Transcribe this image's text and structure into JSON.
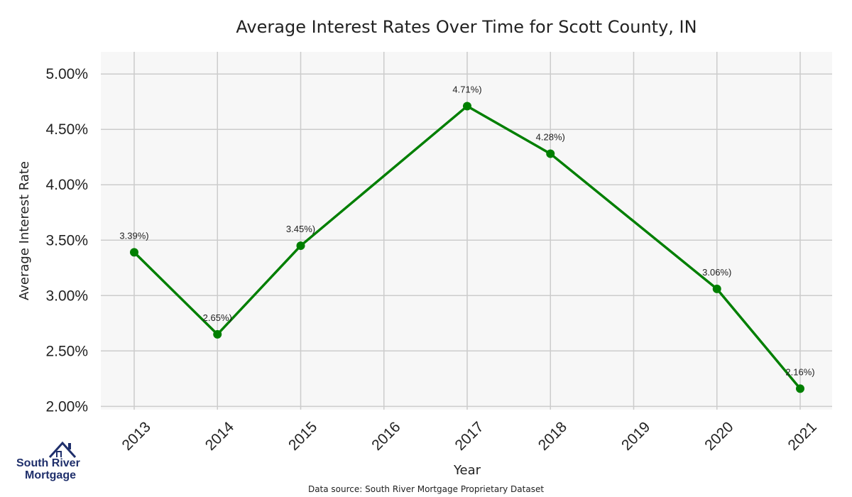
{
  "chart_data": {
    "type": "line",
    "title": "Average Interest Rates Over Time for Scott County, IN",
    "xlabel": "Year",
    "ylabel": "Average Interest Rate",
    "x": [
      "2013",
      "2014",
      "2015",
      "2016",
      "2017",
      "2018",
      "2019",
      "2020",
      "2021"
    ],
    "points": [
      {
        "x": "2013",
        "y": 3.39,
        "label": "3.39%)"
      },
      {
        "x": "2014",
        "y": 2.65,
        "label": "2.65%)"
      },
      {
        "x": "2015",
        "y": 3.45,
        "label": "3.45%)"
      },
      {
        "x": "2017",
        "y": 4.71,
        "label": "4.71%)"
      },
      {
        "x": "2018",
        "y": 4.28,
        "label": "4.28%)"
      },
      {
        "x": "2020",
        "y": 3.06,
        "label": "3.06%)"
      },
      {
        "x": "2021",
        "y": 2.16,
        "label": "2.16%)"
      }
    ],
    "yticks": [
      2.0,
      2.5,
      3.0,
      3.5,
      4.0,
      4.5,
      5.0
    ],
    "ytick_labels": [
      "2.00%",
      "2.50%",
      "3.00%",
      "3.50%",
      "4.00%",
      "4.50%",
      "5.00%"
    ],
    "ylim": [
      1.97,
      5.2
    ],
    "grid": true,
    "line_color": "#007f00",
    "plot_background": "#f7f7f7",
    "grid_color": "#cccccc"
  },
  "footer": {
    "source": "Data source: South River Mortgage Proprietary Dataset"
  },
  "logo": {
    "line1": "South River",
    "line2": "Mortgage",
    "icon": "house-icon",
    "color": "#1f2f6b"
  }
}
